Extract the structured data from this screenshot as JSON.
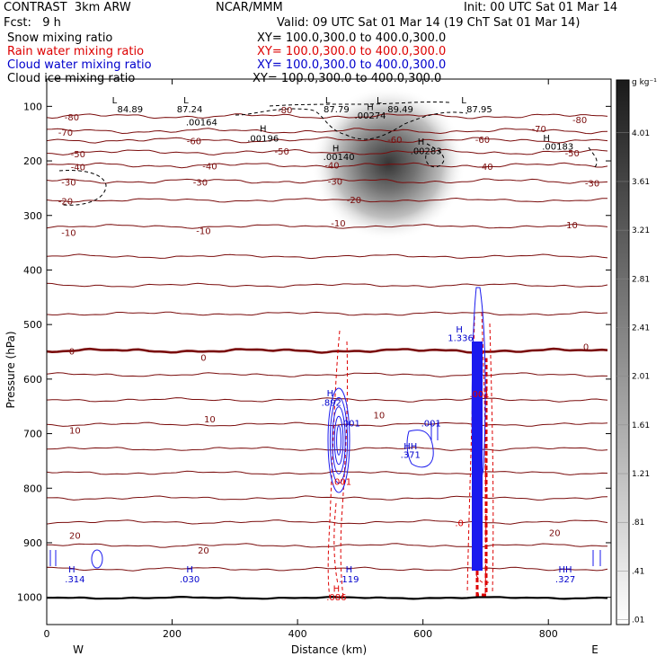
{
  "header": {
    "model": "CONTRAST  3km ARW",
    "org": "NCAR/MMM",
    "init": "Init: 00 UTC Sat 01 Mar 14",
    "fcst": "Fcst:   9 h",
    "valid": "Valid: 09 UTC Sat 01 Mar 14 (19 ChT Sat 01 Mar 14)",
    "fields": [
      {
        "name": "Snow mixing ratio",
        "xy": "XY= 100.0,300.0 to 400.0,300.0",
        "color": "#000000"
      },
      {
        "name": "Rain water mixing ratio",
        "xy": "XY= 100.0,300.0 to 400.0,300.0",
        "color": "#dd0000"
      },
      {
        "name": "Cloud water mixing ratio",
        "xy": "XY= 100.0,300.0 to 400.0,300.0",
        "color": "#0000cc"
      },
      {
        "name": "Cloud ice mixing ratio",
        "xy": "XY= 100.0,300.0 to 400.0,300.0",
        "color": "#000000"
      }
    ]
  },
  "chart_data": {
    "type": "contour",
    "xlabel": "Distance (km)",
    "ylabel": "Pressure (hPa)",
    "xlim": [
      0,
      900
    ],
    "ylim": [
      1050,
      50
    ],
    "x_ticks": [
      0,
      200,
      400,
      600,
      800
    ],
    "y_ticks": [
      100,
      200,
      300,
      400,
      500,
      600,
      700,
      800,
      900,
      1000
    ],
    "x_end_labels": {
      "left": "W",
      "right": "E"
    },
    "colorbar": {
      "unit": "g kg⁻¹",
      "levels": [
        "4.01",
        "3.61",
        "3.21",
        "2.81",
        "2.41",
        "2.01",
        "1.61",
        "1.21",
        ".81",
        ".41",
        ".01"
      ]
    },
    "temperature_isotherms": [
      {
        "value": -80,
        "pressure": 118
      },
      {
        "value": -70,
        "pressure": 145
      },
      {
        "value": -60,
        "pressure": 162
      },
      {
        "value": -50,
        "pressure": 184
      },
      {
        "value": -40,
        "pressure": 208
      },
      {
        "value": -30,
        "pressure": 237
      },
      {
        "value": -20,
        "pressure": 272
      },
      {
        "value": -10,
        "pressure": 320
      },
      {
        "value": -10,
        "pressure": 375
      },
      {
        "value": -10,
        "pressure": 428
      },
      {
        "value": -10,
        "pressure": 480
      },
      {
        "value": 0,
        "pressure": 548
      },
      {
        "value": 0,
        "pressure": 592
      },
      {
        "value": 10,
        "pressure": 638
      },
      {
        "value": 10,
        "pressure": 683
      },
      {
        "value": 10,
        "pressure": 728
      },
      {
        "value": 10,
        "pressure": 772
      },
      {
        "value": 20,
        "pressure": 818
      },
      {
        "value": 20,
        "pressure": 862
      },
      {
        "value": 20,
        "pressure": 905
      },
      {
        "value": 20,
        "pressure": 948
      }
    ],
    "isotherm_labels": [
      {
        "text": "-80",
        "x": 40,
        "p": 119
      },
      {
        "text": "-80",
        "x": 380,
        "p": 106
      },
      {
        "text": "-80",
        "x": 850,
        "p": 124
      },
      {
        "text": "-70",
        "x": 30,
        "p": 147
      },
      {
        "text": "-70",
        "x": 785,
        "p": 141
      },
      {
        "text": "-60",
        "x": 235,
        "p": 163
      },
      {
        "text": "-60",
        "x": 695,
        "p": 160
      },
      {
        "text": "-60",
        "x": 555,
        "p": 160
      },
      {
        "text": "-50",
        "x": 50,
        "p": 187
      },
      {
        "text": "-50",
        "x": 375,
        "p": 182
      },
      {
        "text": "-50",
        "x": 838,
        "p": 185
      },
      {
        "text": "-40",
        "x": 50,
        "p": 211
      },
      {
        "text": "-40",
        "x": 260,
        "p": 209
      },
      {
        "text": "-40",
        "x": 455,
        "p": 207
      },
      {
        "text": "-40",
        "x": 700,
        "p": 210
      },
      {
        "text": "-30",
        "x": 35,
        "p": 239
      },
      {
        "text": "-30",
        "x": 245,
        "p": 239
      },
      {
        "text": "-30",
        "x": 460,
        "p": 237
      },
      {
        "text": "-30",
        "x": 870,
        "p": 240
      },
      {
        "text": "-20",
        "x": 30,
        "p": 273
      },
      {
        "text": "-20",
        "x": 490,
        "p": 271
      },
      {
        "text": "-10",
        "x": 35,
        "p": 331
      },
      {
        "text": "-10",
        "x": 250,
        "p": 328
      },
      {
        "text": "-10",
        "x": 465,
        "p": 314
      },
      {
        "text": "-10",
        "x": 835,
        "p": 317
      },
      {
        "text": "0",
        "x": 40,
        "p": 548
      },
      {
        "text": "0",
        "x": 250,
        "p": 560
      },
      {
        "text": "0",
        "x": 860,
        "p": 540
      },
      {
        "text": "10",
        "x": 45,
        "p": 693
      },
      {
        "text": "10",
        "x": 260,
        "p": 673
      },
      {
        "text": "10",
        "x": 530,
        "p": 665
      },
      {
        "text": "20",
        "x": 45,
        "p": 886
      },
      {
        "text": "20",
        "x": 250,
        "p": 913
      },
      {
        "text": "20",
        "x": 810,
        "p": 881
      }
    ],
    "annotations": [
      {
        "text": "L",
        "x": 108,
        "p": 88,
        "color": "#000000"
      },
      {
        "text": "84.89",
        "x": 133,
        "p": 104,
        "color": "#000000"
      },
      {
        "text": "L",
        "x": 222,
        "p": 88,
        "color": "#000000"
      },
      {
        "text": "87.24",
        "x": 228,
        "p": 104,
        "color": "#000000"
      },
      {
        "text": ".00164",
        "x": 247,
        "p": 128,
        "color": "#000000"
      },
      {
        "text": "H",
        "x": 345,
        "p": 140,
        "color": "#000000"
      },
      {
        "text": ".00196",
        "x": 345,
        "p": 158,
        "color": "#000000"
      },
      {
        "text": "L",
        "x": 448,
        "p": 88,
        "color": "#000000"
      },
      {
        "text": "87.79",
        "x": 462,
        "p": 104,
        "color": "#000000"
      },
      {
        "text": "H",
        "x": 516,
        "p": 100,
        "color": "#000000"
      },
      {
        "text": ".00274",
        "x": 516,
        "p": 116,
        "color": "#000000"
      },
      {
        "text": "L",
        "x": 530,
        "p": 88,
        "color": "#000000"
      },
      {
        "text": "89.49",
        "x": 564,
        "p": 104,
        "color": "#000000"
      },
      {
        "text": "H",
        "x": 461,
        "p": 176,
        "color": "#000000"
      },
      {
        "text": ".00140",
        "x": 466,
        "p": 192,
        "color": "#000000"
      },
      {
        "text": "H",
        "x": 597,
        "p": 164,
        "color": "#000000"
      },
      {
        "text": ".00283",
        "x": 605,
        "p": 181,
        "color": "#000000"
      },
      {
        "text": "L",
        "x": 665,
        "p": 88,
        "color": "#000000"
      },
      {
        "text": "87.95",
        "x": 690,
        "p": 104,
        "color": "#000000"
      },
      {
        "text": "H",
        "x": 797,
        "p": 157,
        "color": "#000000"
      },
      {
        "text": ".00183",
        "x": 815,
        "p": 173,
        "color": "#000000"
      },
      {
        "text": "H",
        "x": 658,
        "p": 508,
        "color": "#0000cc"
      },
      {
        "text": "1.336",
        "x": 660,
        "p": 524,
        "color": "#0000cc"
      },
      {
        "text": "H",
        "x": 452,
        "p": 625,
        "color": "#0000cc"
      },
      {
        "text": ".892",
        "x": 454,
        "p": 642,
        "color": "#0000cc"
      },
      {
        "text": ".001",
        "x": 484,
        "p": 680,
        "color": "#0000cc"
      },
      {
        "text": ".001",
        "x": 613,
        "p": 680,
        "color": "#0000cc"
      },
      {
        "text": "HH",
        "x": 580,
        "p": 722,
        "color": "#0000cc"
      },
      {
        "text": ".371",
        "x": 580,
        "p": 738,
        "color": "#0000cc"
      },
      {
        "text": ".001",
        "x": 690,
        "p": 627,
        "color": "#dd0000"
      },
      {
        "text": ".001",
        "x": 470,
        "p": 787,
        "color": "#dd0000"
      },
      {
        "text": ".0",
        "x": 658,
        "p": 863,
        "color": "#dd0000"
      },
      {
        "text": "H",
        "x": 40,
        "p": 948,
        "color": "#0000cc"
      },
      {
        "text": ".314",
        "x": 45,
        "p": 966,
        "color": "#0000cc"
      },
      {
        "text": "H",
        "x": 228,
        "p": 948,
        "color": "#0000cc"
      },
      {
        "text": ".030",
        "x": 228,
        "p": 966,
        "color": "#0000cc"
      },
      {
        "text": "H",
        "x": 482,
        "p": 948,
        "color": "#0000cc"
      },
      {
        "text": ".119",
        "x": 482,
        "p": 966,
        "color": "#0000cc"
      },
      {
        "text": "H",
        "x": 462,
        "p": 983,
        "color": "#dd0000"
      },
      {
        "text": ".086",
        "x": 462,
        "p": 999,
        "color": "#dd0000"
      },
      {
        "text": "HH",
        "x": 827,
        "p": 948,
        "color": "#0000cc"
      },
      {
        "text": ".327",
        "x": 827,
        "p": 966,
        "color": "#0000cc"
      }
    ],
    "snow_max_center": {
      "x": 545,
      "p": 205
    }
  }
}
